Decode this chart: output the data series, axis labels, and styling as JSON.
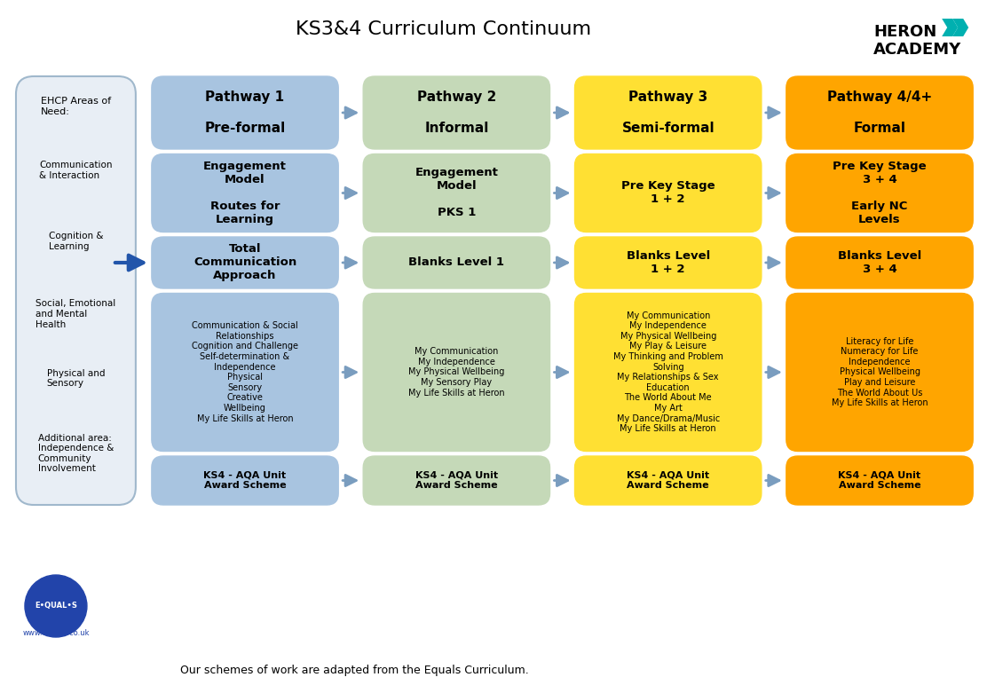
{
  "title": "KS3&4 Curriculum Continuum",
  "background_color": "#ffffff",
  "col_colors": {
    "ehcp": "#ffffff",
    "p1": "#a8c4e0",
    "p2": "#c5d9b8",
    "p3": "#ffe033",
    "p4": "#ffa500"
  },
  "ehcp_box_color": "#e8eef5",
  "ehcp_border_color": "#a0b8cc",
  "ehcp_items": [
    "EHCP Areas of\nNeed:",
    "Communication\n& Interaction",
    "Cognition &\nLearning",
    "Social, Emotional\nand Mental\nHealth",
    "Physical and\nSensory",
    "Additional area:\nIndependence &\nCommunity\nInvolvement"
  ],
  "pathways": [
    {
      "title": "Pathway 1\n\nPre-formal",
      "color": "#a8c4e0"
    },
    {
      "title": "Pathway 2\n\nInformal",
      "color": "#c5d9b8"
    },
    {
      "title": "Pathway 3\n\nSemi-formal",
      "color": "#ffe033"
    },
    {
      "title": "Pathway 4/4+\n\nFormal",
      "color": "#ffa500"
    }
  ],
  "row2": [
    {
      "text": "Engagement\nModel\n\nRoutes for\nLearning",
      "color": "#a8c4e0"
    },
    {
      "text": "Engagement\nModel\n\nPKS 1",
      "color": "#c5d9b8"
    },
    {
      "text": "Pre Key Stage\n1 + 2",
      "color": "#ffe033"
    },
    {
      "text": "Pre Key Stage\n3 + 4\n\nEarly NC\nLevels",
      "color": "#ffa500"
    }
  ],
  "row3": [
    {
      "text": "Total\nCommunication\nApproach",
      "color": "#a8c4e0"
    },
    {
      "text": "Blanks Level 1",
      "color": "#c5d9b8"
    },
    {
      "text": "Blanks Level\n1 + 2",
      "color": "#ffe033"
    },
    {
      "text": "Blanks Level\n3 + 4",
      "color": "#ffa500"
    }
  ],
  "row4": [
    {
      "text": "Communication & Social\nRelationships\nCognition and Challenge\nSelf-determination &\nIndependence\nPhysical\nSensory\nCreative\nWellbeing\nMy Life Skills at Heron",
      "color": "#a8c4e0"
    },
    {
      "text": "My Communication\nMy Independence\nMy Physical Wellbeing\nMy Sensory Play\nMy Life Skills at Heron",
      "color": "#c5d9b8"
    },
    {
      "text": "My Communication\nMy Independence\nMy Physical Wellbeing\nMy Play & Leisure\nMy Thinking and Problem\nSolving\nMy Relationships & Sex\nEducation\nThe World About Me\nMy Art\nMy Dance/Drama/Music\nMy Life Skills at Heron",
      "color": "#ffe033"
    },
    {
      "text": "Literacy for Life\nNumeracy for Life\nIndependence\nPhysical Wellbeing\nPlay and Leisure\nThe World About Us\nMy Life Skills at Heron",
      "color": "#ffa500"
    }
  ],
  "row5": [
    {
      "text": "KS4 - AQA Unit\nAward Scheme",
      "color": "#a8c4e0"
    },
    {
      "text": "KS4 - AQA Unit\nAward Scheme",
      "color": "#c5d9b8"
    },
    {
      "text": "KS4 - AQA Unit\nAward Scheme",
      "color": "#ffe033"
    },
    {
      "text": "KS4 - AQA Unit\nAward Scheme",
      "color": "#ffa500"
    }
  ],
  "footer": "Our schemes of work are adapted from the Equals Curriculum.",
  "arrow_color": "#7a9dbf"
}
